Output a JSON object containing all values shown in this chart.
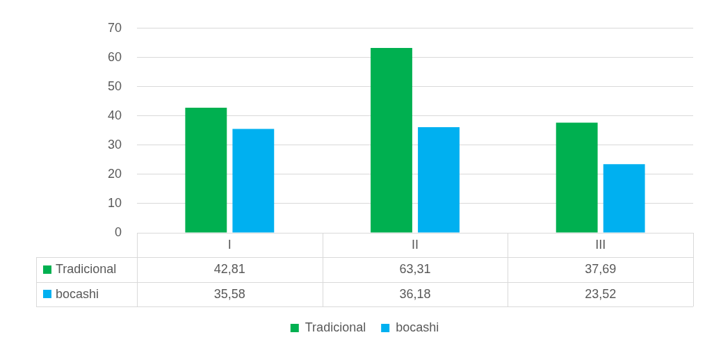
{
  "chart_data": {
    "type": "bar",
    "categories": [
      "I",
      "II",
      "III"
    ],
    "series": [
      {
        "name": "Tradicional",
        "color": "#00b050",
        "values": [
          42.81,
          63.31,
          37.69
        ],
        "value_labels": [
          "42,81",
          "63,31",
          "37,69"
        ]
      },
      {
        "name": "bocashi",
        "color": "#00b0f0",
        "values": [
          35.58,
          36.18,
          23.52
        ],
        "value_labels": [
          "35,58",
          "36,18",
          "23,52"
        ]
      }
    ],
    "ylim": [
      0,
      70
    ],
    "yticks": [
      0,
      10,
      20,
      30,
      40,
      50,
      60,
      70
    ],
    "grid": "y",
    "legend": "bottom"
  }
}
